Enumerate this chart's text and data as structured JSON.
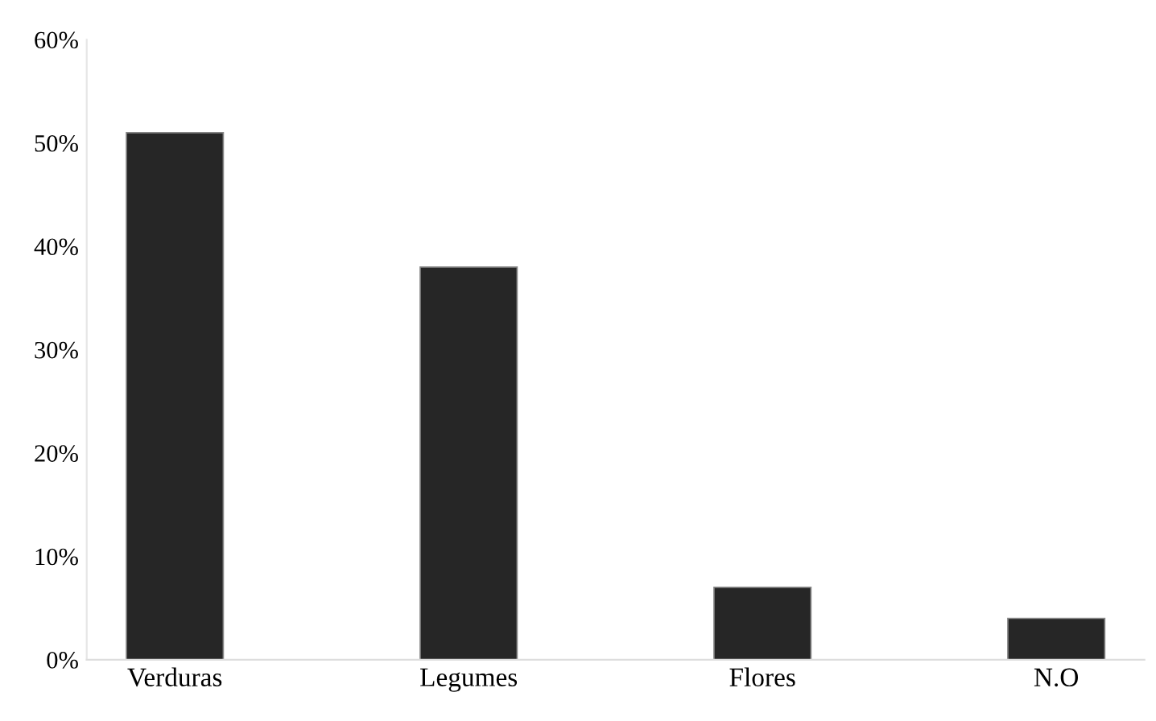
{
  "chart_data": {
    "type": "bar",
    "categories": [
      "Verduras",
      "Legumes",
      "Flores",
      "N.O"
    ],
    "values": [
      51,
      38,
      7,
      4
    ],
    "color": "#262626",
    "ylim": [
      0,
      60
    ],
    "yticks": [
      {
        "value": 0,
        "label": "0%"
      },
      {
        "value": 10,
        "label": "10%"
      },
      {
        "value": 20,
        "label": "20%"
      },
      {
        "value": 30,
        "label": "30%"
      },
      {
        "value": 40,
        "label": "40%"
      },
      {
        "value": 50,
        "label": "50%"
      },
      {
        "value": 60,
        "label": "60%"
      }
    ],
    "grid": false,
    "legend": false
  }
}
